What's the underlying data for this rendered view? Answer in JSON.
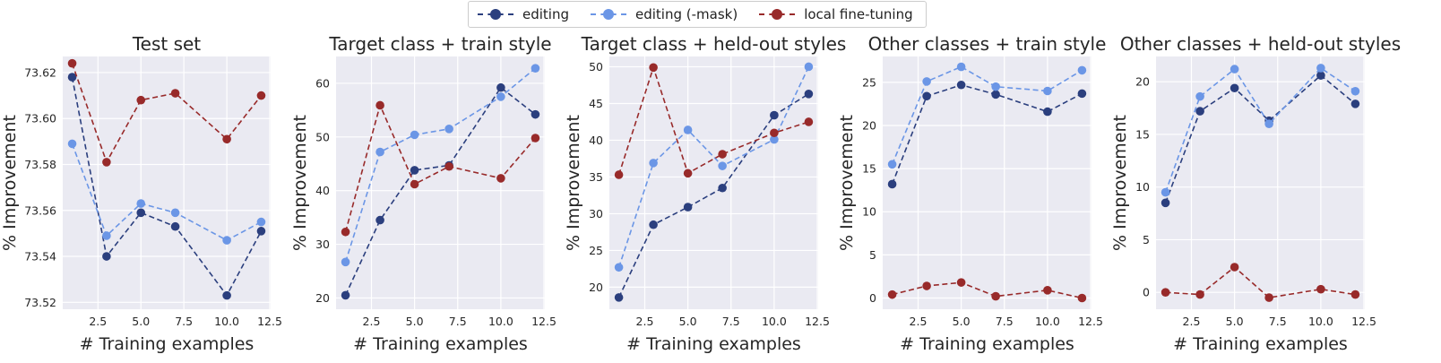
{
  "legend": {
    "items": [
      {
        "label": "editing",
        "color": "#2b3f7e"
      },
      {
        "label": "editing (-mask)",
        "color": "#6b96e6"
      },
      {
        "label": "local fine-tuning",
        "color": "#982a2a"
      }
    ]
  },
  "chart_data": [
    {
      "type": "line",
      "title": "Test set",
      "xlabel": "# Training examples",
      "ylabel": "% Improvement",
      "x": [
        1,
        3,
        5,
        7,
        10,
        12
      ],
      "xlim": [
        0.45,
        12.55
      ],
      "ylim": [
        73.517,
        73.627
      ],
      "xticks": [
        2.5,
        5.0,
        7.5,
        10.0,
        12.5
      ],
      "xtick_labels": [
        "2.5",
        "5.0",
        "7.5",
        "10.0",
        "12.5"
      ],
      "yticks": [
        73.52,
        73.54,
        73.56,
        73.58,
        73.6,
        73.62
      ],
      "ytick_labels": [
        "73.52",
        "73.54",
        "73.56",
        "73.58",
        "73.60",
        "73.62"
      ],
      "grid": true,
      "series": [
        {
          "name": "editing",
          "values": [
            73.618,
            73.54,
            73.559,
            73.553,
            73.523,
            73.551
          ]
        },
        {
          "name": "editing (-mask)",
          "values": [
            73.589,
            73.549,
            73.563,
            73.559,
            73.547,
            73.555
          ]
        },
        {
          "name": "local fine-tuning",
          "values": [
            73.624,
            73.581,
            73.608,
            73.611,
            73.591,
            73.61
          ]
        }
      ]
    },
    {
      "type": "line",
      "title": "Target class + train style",
      "xlabel": "# Training examples",
      "ylabel": "% Improvement",
      "x": [
        1,
        3,
        5,
        7,
        10,
        12
      ],
      "xlim": [
        0.45,
        12.55
      ],
      "ylim": [
        17.9,
        65.0
      ],
      "xticks": [
        2.5,
        5.0,
        7.5,
        10.0,
        12.5
      ],
      "xtick_labels": [
        "2.5",
        "5.0",
        "7.5",
        "10.0",
        "12.5"
      ],
      "yticks": [
        20,
        30,
        40,
        50,
        60
      ],
      "ytick_labels": [
        "20",
        "30",
        "40",
        "50",
        "60"
      ],
      "grid": true,
      "series": [
        {
          "name": "editing",
          "values": [
            20.5,
            34.5,
            43.8,
            44.7,
            59.2,
            54.2
          ]
        },
        {
          "name": "editing (-mask)",
          "values": [
            26.7,
            47.2,
            50.4,
            51.5,
            57.5,
            62.8
          ]
        },
        {
          "name": "local fine-tuning",
          "values": [
            32.3,
            55.9,
            41.2,
            44.5,
            42.3,
            49.8
          ]
        }
      ]
    },
    {
      "type": "line",
      "title": "Target class + held-out styles",
      "xlabel": "# Training examples",
      "ylabel": "% Improvement",
      "x": [
        1,
        3,
        5,
        7,
        10,
        12
      ],
      "xlim": [
        0.45,
        12.55
      ],
      "ylim": [
        17.0,
        51.4
      ],
      "xticks": [
        2.5,
        5.0,
        7.5,
        10.0,
        12.5
      ],
      "xtick_labels": [
        "2.5",
        "5.0",
        "7.5",
        "10.0",
        "12.5"
      ],
      "yticks": [
        20,
        25,
        30,
        35,
        40,
        45,
        50
      ],
      "ytick_labels": [
        "20",
        "25",
        "30",
        "35",
        "40",
        "45",
        "50"
      ],
      "grid": true,
      "series": [
        {
          "name": "editing",
          "values": [
            18.6,
            28.5,
            30.9,
            33.5,
            43.4,
            46.3
          ]
        },
        {
          "name": "editing (-mask)",
          "values": [
            22.7,
            36.9,
            41.4,
            36.5,
            40.1,
            50.0
          ]
        },
        {
          "name": "local fine-tuning",
          "values": [
            35.3,
            49.9,
            35.5,
            38.1,
            41.0,
            42.5
          ]
        }
      ]
    },
    {
      "type": "line",
      "title": "Other classes + train style",
      "xlabel": "# Training examples",
      "ylabel": "% Improvement",
      "x": [
        1,
        3,
        5,
        7,
        10,
        12
      ],
      "xlim": [
        0.45,
        12.55
      ],
      "ylim": [
        -1.3,
        28.0
      ],
      "xticks": [
        2.5,
        5.0,
        7.5,
        10.0,
        12.5
      ],
      "xtick_labels": [
        "2.5",
        "5.0",
        "7.5",
        "10.0",
        "12.5"
      ],
      "yticks": [
        0,
        5,
        10,
        15,
        20,
        25
      ],
      "ytick_labels": [
        "0",
        "5",
        "10",
        "15",
        "20",
        "25"
      ],
      "grid": true,
      "series": [
        {
          "name": "editing",
          "values": [
            13.2,
            23.4,
            24.7,
            23.6,
            21.6,
            23.7
          ]
        },
        {
          "name": "editing (-mask)",
          "values": [
            15.5,
            25.1,
            26.8,
            24.5,
            24.0,
            26.4
          ]
        },
        {
          "name": "local fine-tuning",
          "values": [
            0.4,
            1.4,
            1.8,
            0.2,
            0.9,
            0.0
          ]
        }
      ]
    },
    {
      "type": "line",
      "title": "Other classes + held-out styles",
      "xlabel": "# Training examples",
      "ylabel": "% Improvement",
      "x": [
        1,
        3,
        5,
        7,
        10,
        12
      ],
      "xlim": [
        0.45,
        12.55
      ],
      "ylim": [
        -1.6,
        22.4
      ],
      "xticks": [
        2.5,
        5.0,
        7.5,
        10.0,
        12.5
      ],
      "xtick_labels": [
        "2.5",
        "5.0",
        "7.5",
        "10.0",
        "12.5"
      ],
      "yticks": [
        0,
        5,
        10,
        15,
        20
      ],
      "ytick_labels": [
        "0",
        "5",
        "10",
        "15",
        "20"
      ],
      "grid": true,
      "series": [
        {
          "name": "editing",
          "values": [
            8.5,
            17.2,
            19.4,
            16.3,
            20.6,
            17.9
          ]
        },
        {
          "name": "editing (-mask)",
          "values": [
            9.5,
            18.6,
            21.2,
            16.0,
            21.3,
            19.1
          ]
        },
        {
          "name": "local fine-tuning",
          "values": [
            0.0,
            -0.2,
            2.4,
            -0.5,
            0.3,
            -0.2
          ]
        }
      ]
    }
  ]
}
